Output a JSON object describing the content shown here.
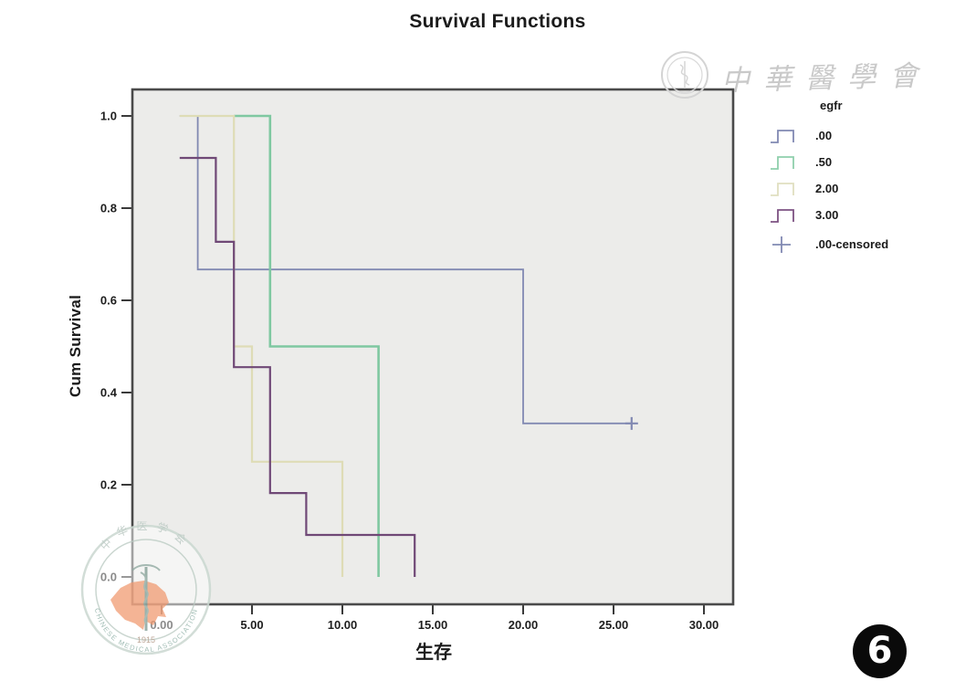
{
  "title": "Survival Functions",
  "page_badge": {
    "number": "6"
  },
  "watermarks": {
    "top_right_text": "中華醫學會",
    "seal": {
      "arc_text_top": "中华医学会",
      "arc_text_bottom": "CHINESE MEDICAL ASSOCIATION",
      "year": "1915"
    }
  },
  "chart_data": {
    "type": "line",
    "style": "kaplan-meier-step",
    "title": "Survival Functions",
    "xlabel": "生存",
    "ylabel": "Cum Survival",
    "xlim": [
      0,
      30
    ],
    "ylim": [
      0.0,
      1.0
    ],
    "xticks": [
      0,
      5,
      10,
      15,
      20,
      25,
      30
    ],
    "xtick_labels": [
      "0.00",
      "5.00",
      "10.00",
      "15.00",
      "20.00",
      "25.00",
      "30.00"
    ],
    "yticks": [
      0,
      0.2,
      0.4,
      0.6,
      0.8,
      1.0
    ],
    "ytick_labels": [
      "0.0",
      "0.2",
      "0.4",
      "0.6",
      "0.8",
      "1.0"
    ],
    "grid": false,
    "plot_background": "#ececea",
    "frame_color": "#4a4a4a",
    "legend_title": "egfr",
    "legend_position": "right-outside",
    "series": [
      {
        "name": ".00",
        "color": "#8189b2",
        "points": [
          [
            1,
            1.0
          ],
          [
            2,
            1.0
          ],
          [
            2,
            0.667
          ],
          [
            20,
            0.667
          ],
          [
            20,
            0.333
          ],
          [
            26,
            0.333
          ]
        ]
      },
      {
        "name": ".50",
        "color": "#7fc8a1",
        "points": [
          [
            4,
            1.0
          ],
          [
            6,
            1.0
          ],
          [
            6,
            0.5
          ],
          [
            12,
            0.5
          ],
          [
            12,
            0.0
          ]
        ]
      },
      {
        "name": "2.00",
        "color": "#dedcb6",
        "points": [
          [
            1,
            1.0
          ],
          [
            4,
            1.0
          ],
          [
            4,
            0.5
          ],
          [
            5,
            0.5
          ],
          [
            5,
            0.25
          ],
          [
            10,
            0.25
          ],
          [
            10,
            0.0
          ]
        ]
      },
      {
        "name": "3.00",
        "color": "#6f4876",
        "points": [
          [
            1,
            0.909
          ],
          [
            3,
            0.909
          ],
          [
            3,
            0.727
          ],
          [
            4,
            0.727
          ],
          [
            4,
            0.455
          ],
          [
            6,
            0.455
          ],
          [
            6,
            0.182
          ],
          [
            8,
            0.182
          ],
          [
            8,
            0.091
          ],
          [
            14,
            0.091
          ],
          [
            14,
            0.0
          ]
        ]
      }
    ],
    "censored_points": [
      {
        "series": ".00",
        "x": 26,
        "y": 0.333
      }
    ],
    "legend_entries": [
      {
        "label": ".00",
        "marker": "step",
        "color": "#8189b2"
      },
      {
        "label": ".50",
        "marker": "step",
        "color": "#8fcfac"
      },
      {
        "label": "2.00",
        "marker": "step",
        "color": "#e0dfc0"
      },
      {
        "label": "3.00",
        "marker": "step",
        "color": "#7d5283"
      },
      {
        "label": ".00-censored",
        "marker": "plus",
        "color": "#8189b2"
      }
    ]
  }
}
